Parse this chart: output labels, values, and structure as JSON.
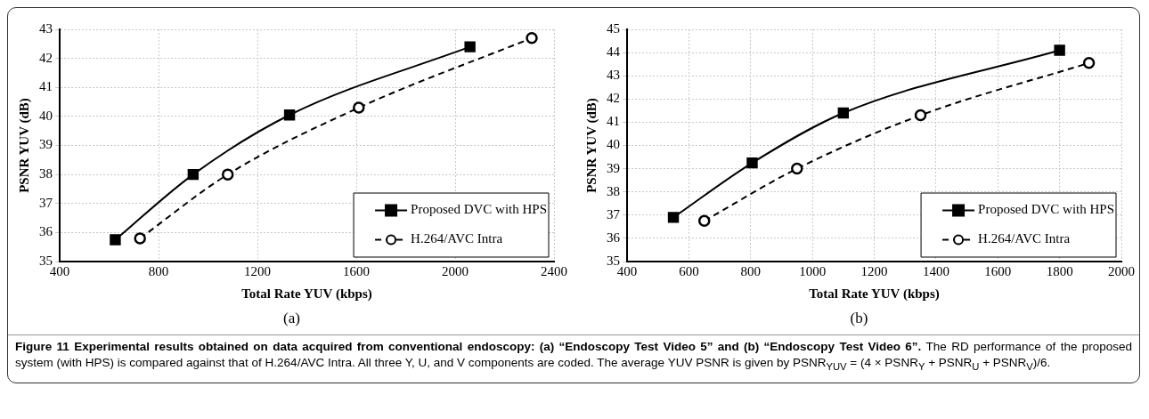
{
  "chart_data": [
    {
      "type": "line",
      "xlabel": "Total Rate YUV (kbps)",
      "ylabel": "PSNR YUV (dB)",
      "annotations": [
        "(a)",
        "Figure 11 Experimental results obtained on data acquired from conventional endoscopy: (a) “Endoscopy Test Video 5” and (b) “Endoscopy Test Video 6”.",
        "The RD performance of the proposed system (with HPS) is compared against that of H.264/AVC Intra. All three Y, U, and V components are coded. The average YUV PSNR is given by PSNR$_{YUV}$ = (4 × PSNR$_{Y}$ + PSNR$_{U}$ + PSNR$_{V}$)/6."
      ],
      "xlim": [
        400,
        2400
      ],
      "xticks": [
        400,
        800,
        1200,
        1600,
        2000,
        2400
      ],
      "ylim": [
        35,
        43
      ],
      "yticks": [
        35,
        36,
        37,
        38,
        39,
        40,
        41,
        42,
        43
      ],
      "grid": true,
      "legend": "bottom right",
      "series": [
        {
          "name": "Proposed DVC with HPS",
          "color": "#000000",
          "marker": "square",
          "line_style": "solid",
          "x": [
            625,
            940,
            1330,
            2060
          ],
          "values": [
            35.75,
            38.0,
            40.05,
            42.4
          ]
        },
        {
          "name": "H.264/AVC Intra",
          "color": "#000000",
          "marker": "circle",
          "line_style": "dashed",
          "x": [
            725,
            1080,
            1610,
            2310
          ],
          "values": [
            35.8,
            38.0,
            40.3,
            42.7
          ]
        }
      ]
    },
    {
      "type": "line",
      "xlabel": "Total Rate YUV (kbps)",
      "ylabel": "PSNR YUV (dB)",
      "annotations": [
        "(b)"
      ],
      "xlim": [
        400,
        2000
      ],
      "xticks": [
        400,
        600,
        800,
        1000,
        1200,
        1400,
        1600,
        1800,
        2000
      ],
      "ylim": [
        35,
        45
      ],
      "yticks": [
        35,
        36,
        37,
        38,
        39,
        40,
        41,
        42,
        43,
        44,
        45
      ],
      "grid": true,
      "legend": "bottom right",
      "series": [
        {
          "name": "Proposed DVC with HPS",
          "color": "#000000",
          "marker": "square",
          "line_style": "solid",
          "x": [
            550,
            805,
            1100,
            1800
          ],
          "values": [
            36.9,
            39.25,
            41.4,
            44.1
          ]
        },
        {
          "name": "H.264/AVC Intra",
          "color": "#000000",
          "marker": "circle",
          "line_style": "dashed",
          "x": [
            650,
            950,
            1350,
            1895
          ],
          "values": [
            36.75,
            39.0,
            41.3,
            43.55
          ]
        }
      ]
    }
  ]
}
